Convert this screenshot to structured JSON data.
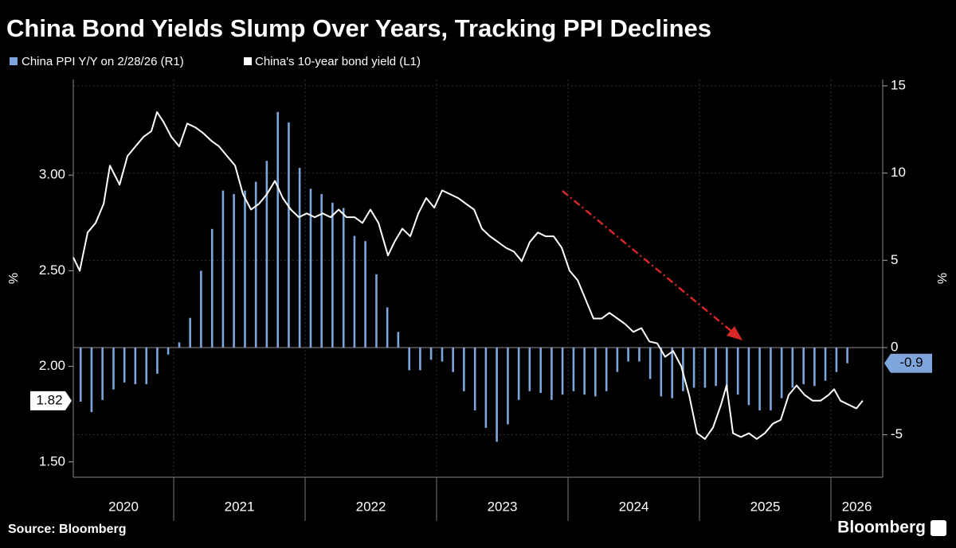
{
  "chart_data": {
    "type": "combo",
    "title": "China Bond Yields Slump Over Years, Tracking PPI Declines",
    "y_label": "%",
    "y2_label": "%",
    "source": "Source: Bloomberg",
    "logo": "Bloomberg",
    "xlim": [
      2020.236,
      2026.394
    ],
    "xticks": [
      2021,
      2022,
      2023,
      2024,
      2025,
      2026
    ],
    "x_labels": [
      2020,
      2021,
      2022,
      2023,
      2024,
      2025,
      2026
    ],
    "ylim": [
      1.42,
      3.5
    ],
    "yticks": [
      {
        "value": 1.5,
        "label": "1.50"
      },
      {
        "value": 2.0,
        "label": "2.00"
      },
      {
        "value": 2.5,
        "label": "2.50"
      },
      {
        "value": 3.0,
        "label": "3.00"
      }
    ],
    "y2lim": [
      -7.43,
      15.36
    ],
    "y2ticks": [
      -5,
      0,
      5,
      10,
      15
    ],
    "y_last_label": {
      "value": 1.82,
      "label": "1.82"
    },
    "y2_last_label": -0.9,
    "series": [
      {
        "name": "China PPI Y/Y on 2/28/26 (R1)",
        "type": "bar",
        "axis": "y2",
        "color": "#7ea6dc",
        "x": [
          2020.292,
          2020.375,
          2020.458,
          2020.542,
          2020.625,
          2020.708,
          2020.792,
          2020.875,
          2020.958,
          2021.042,
          2021.125,
          2021.208,
          2021.292,
          2021.375,
          2021.458,
          2021.542,
          2021.625,
          2021.708,
          2021.792,
          2021.875,
          2021.958,
          2022.042,
          2022.125,
          2022.208,
          2022.292,
          2022.375,
          2022.458,
          2022.542,
          2022.625,
          2022.708,
          2022.792,
          2022.875,
          2022.958,
          2023.042,
          2023.125,
          2023.208,
          2023.292,
          2023.375,
          2023.458,
          2023.542,
          2023.625,
          2023.708,
          2023.792,
          2023.875,
          2023.958,
          2024.042,
          2024.125,
          2024.208,
          2024.292,
          2024.375,
          2024.458,
          2024.542,
          2024.625,
          2024.708,
          2024.792,
          2024.875,
          2024.958,
          2025.042,
          2025.125,
          2025.208,
          2025.292,
          2025.375,
          2025.458,
          2025.542,
          2025.625,
          2025.708,
          2025.792,
          2025.875,
          2025.958,
          2026.042,
          2026.125
        ],
        "values": [
          -3.1,
          -3.7,
          -3.0,
          -2.4,
          -2.0,
          -2.1,
          -2.1,
          -1.5,
          -0.4,
          0.3,
          1.7,
          4.4,
          6.8,
          9.0,
          8.8,
          9.0,
          9.5,
          10.7,
          13.5,
          12.9,
          10.3,
          9.1,
          8.8,
          8.3,
          8.0,
          6.4,
          6.1,
          4.2,
          2.3,
          0.9,
          -1.3,
          -1.3,
          -0.7,
          -0.8,
          -1.4,
          -2.5,
          -3.6,
          -4.6,
          -5.4,
          -4.4,
          -3.0,
          -2.5,
          -2.6,
          -3.0,
          -2.7,
          -2.5,
          -2.7,
          -2.8,
          -2.5,
          -1.4,
          -0.8,
          -0.8,
          -1.8,
          -2.8,
          -2.9,
          -2.5,
          -2.3,
          -2.3,
          -2.2,
          -2.5,
          -2.7,
          -3.3,
          -3.6,
          -3.6,
          -2.9,
          -2.3,
          -2.1,
          -2.2,
          -1.9,
          -1.4,
          -0.9
        ]
      },
      {
        "name": "China's 10-year bond yield (L1)",
        "type": "line",
        "axis": "y",
        "color": "#ffffff",
        "x": [
          2020.236,
          2020.285,
          2020.345,
          2020.406,
          2020.467,
          2020.515,
          2020.588,
          2020.648,
          2020.709,
          2020.77,
          2020.83,
          2020.873,
          2020.921,
          2020.982,
          2021.042,
          2021.103,
          2021.164,
          2021.224,
          2021.285,
          2021.345,
          2021.406,
          2021.467,
          2021.527,
          2021.588,
          2021.648,
          2021.709,
          2021.77,
          2021.83,
          2021.891,
          2021.952,
          2022.012,
          2022.073,
          2022.133,
          2022.194,
          2022.255,
          2022.315,
          2022.376,
          2022.436,
          2022.497,
          2022.558,
          2022.63,
          2022.679,
          2022.739,
          2022.8,
          2022.861,
          2022.921,
          2022.982,
          2023.042,
          2023.103,
          2023.164,
          2023.224,
          2023.285,
          2023.345,
          2023.406,
          2023.467,
          2023.527,
          2023.588,
          2023.648,
          2023.709,
          2023.77,
          2023.83,
          2023.891,
          2023.952,
          2024.012,
          2024.073,
          2024.133,
          2024.194,
          2024.255,
          2024.315,
          2024.376,
          2024.436,
          2024.497,
          2024.558,
          2024.618,
          2024.679,
          2024.739,
          2024.8,
          2024.861,
          2024.921,
          2024.982,
          2025.042,
          2025.103,
          2025.164,
          2025.206,
          2025.255,
          2025.315,
          2025.376,
          2025.436,
          2025.497,
          2025.558,
          2025.618,
          2025.679,
          2025.739,
          2025.8,
          2025.861,
          2025.921,
          2025.982,
          2026.024,
          2026.073,
          2026.133,
          2026.194,
          2026.242
        ],
        "values": [
          2.57,
          2.5,
          2.7,
          2.75,
          2.85,
          3.05,
          2.95,
          3.1,
          3.15,
          3.2,
          3.23,
          3.33,
          3.28,
          3.2,
          3.15,
          3.27,
          3.25,
          3.22,
          3.18,
          3.15,
          3.1,
          3.05,
          2.9,
          2.82,
          2.85,
          2.9,
          2.97,
          2.88,
          2.82,
          2.78,
          2.8,
          2.78,
          2.8,
          2.78,
          2.82,
          2.78,
          2.78,
          2.75,
          2.82,
          2.75,
          2.58,
          2.65,
          2.72,
          2.68,
          2.8,
          2.88,
          2.83,
          2.92,
          2.9,
          2.88,
          2.85,
          2.82,
          2.72,
          2.68,
          2.65,
          2.62,
          2.6,
          2.55,
          2.65,
          2.7,
          2.68,
          2.68,
          2.62,
          2.5,
          2.45,
          2.35,
          2.25,
          2.25,
          2.28,
          2.25,
          2.22,
          2.18,
          2.2,
          2.13,
          2.12,
          2.05,
          2.08,
          2.0,
          1.85,
          1.65,
          1.62,
          1.68,
          1.8,
          1.9,
          1.65,
          1.63,
          1.65,
          1.62,
          1.65,
          1.7,
          1.72,
          1.85,
          1.9,
          1.85,
          1.82,
          1.82,
          1.85,
          1.88,
          1.82,
          1.8,
          1.78,
          1.82
        ]
      }
    ]
  }
}
